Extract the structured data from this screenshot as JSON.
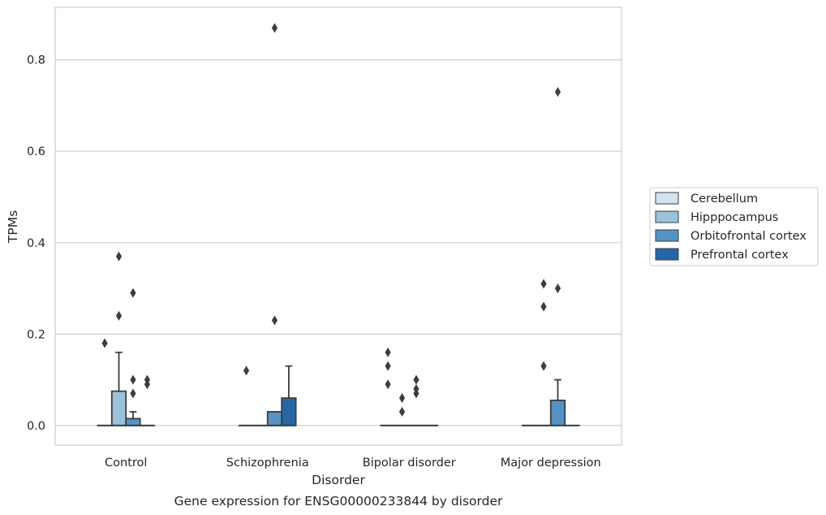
{
  "chart_data": {
    "type": "box",
    "title": "Gene expression for ENSG00000233844 by disorder",
    "xlabel": "Disorder",
    "ylabel": "TPMs",
    "ylim": [
      -0.043,
      0.915
    ],
    "yticks": [
      "0.0",
      "0.2",
      "0.4",
      "0.6",
      "0.8"
    ],
    "grid": "horizontal",
    "legend_position": "right",
    "categories": [
      "Control",
      "Schizophrenia",
      "Bipolar disorder",
      "Major depression"
    ],
    "series": [
      {
        "name": "Cerebellum",
        "color": "#d1e2f1",
        "boxes": [
          {
            "q1": 0,
            "median": 0,
            "q3": 0,
            "whisker_low": 0,
            "whisker_high": 0,
            "outliers": [
              0.18
            ]
          },
          {
            "q1": 0,
            "median": 0,
            "q3": 0,
            "whisker_low": 0,
            "whisker_high": 0,
            "outliers": [
              0.12
            ]
          },
          {
            "q1": 0,
            "median": 0,
            "q3": 0,
            "whisker_low": 0,
            "whisker_high": 0,
            "outliers": [
              0.16,
              0.13,
              0.09
            ]
          },
          {
            "q1": 0,
            "median": 0,
            "q3": 0,
            "whisker_low": 0,
            "whisker_high": 0,
            "outliers": []
          }
        ]
      },
      {
        "name": "Hipppocampus",
        "color": "#9ac2db",
        "boxes": [
          {
            "q1": 0,
            "median": 0,
            "q3": 0.075,
            "whisker_low": 0,
            "whisker_high": 0.16,
            "outliers": [
              0.37,
              0.24
            ]
          },
          {
            "q1": 0,
            "median": 0,
            "q3": 0,
            "whisker_low": 0,
            "whisker_high": 0,
            "outliers": []
          },
          {
            "q1": 0,
            "median": 0,
            "q3": 0,
            "whisker_low": 0,
            "whisker_high": 0,
            "outliers": [
              0.06,
              0.03
            ]
          },
          {
            "q1": 0,
            "median": 0,
            "q3": 0,
            "whisker_low": 0,
            "whisker_high": 0,
            "outliers": [
              0.31,
              0.26,
              0.13
            ]
          }
        ]
      },
      {
        "name": "Orbitofrontal cortex",
        "color": "#5394c4",
        "boxes": [
          {
            "q1": 0,
            "median": 0,
            "q3": 0.015,
            "whisker_low": 0,
            "whisker_high": 0.03,
            "outliers": [
              0.29,
              0.1,
              0.07
            ]
          },
          {
            "q1": 0,
            "median": 0,
            "q3": 0.03,
            "whisker_low": 0,
            "whisker_high": 0.03,
            "outliers": [
              0.87,
              0.23
            ]
          },
          {
            "q1": 0,
            "median": 0,
            "q3": 0,
            "whisker_low": 0,
            "whisker_high": 0,
            "outliers": [
              0.1,
              0.08,
              0.07
            ]
          },
          {
            "q1": 0,
            "median": 0,
            "q3": 0.055,
            "whisker_low": 0,
            "whisker_high": 0.1,
            "outliers": [
              0.73,
              0.3
            ]
          }
        ]
      },
      {
        "name": "Prefrontal cortex",
        "color": "#2666a6",
        "boxes": [
          {
            "q1": 0,
            "median": 0,
            "q3": 0,
            "whisker_low": 0,
            "whisker_high": 0,
            "outliers": [
              0.1,
              0.09
            ]
          },
          {
            "q1": 0,
            "median": 0,
            "q3": 0.06,
            "whisker_low": 0,
            "whisker_high": 0.13,
            "outliers": []
          },
          {
            "q1": 0,
            "median": 0,
            "q3": 0,
            "whisker_low": 0,
            "whisker_high": 0,
            "outliers": []
          },
          {
            "q1": 0,
            "median": 0,
            "q3": 0,
            "whisker_low": 0,
            "whisker_high": 0,
            "outliers": []
          }
        ]
      }
    ]
  }
}
